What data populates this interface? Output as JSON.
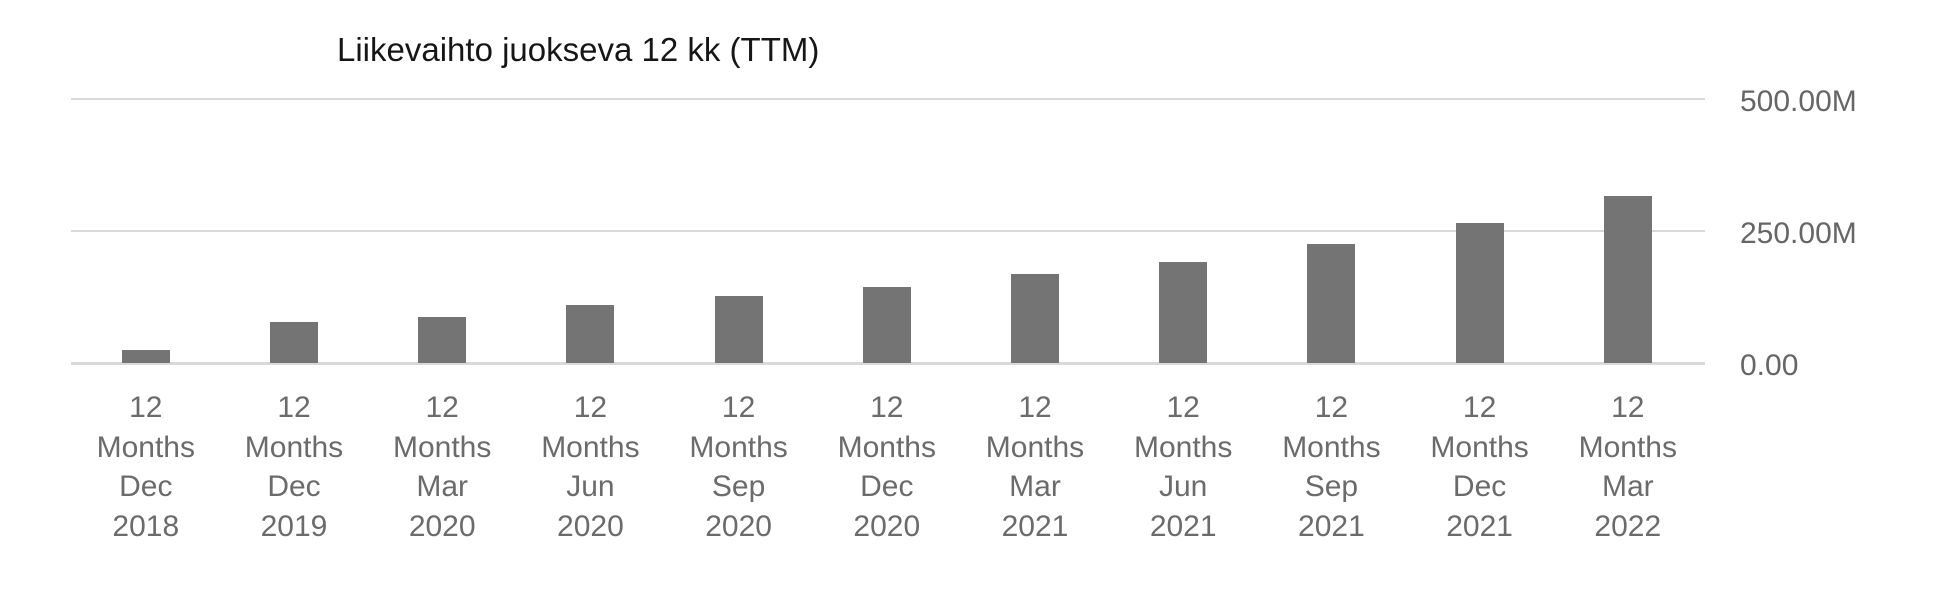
{
  "chart": {
    "title": "Liikevaihto juokseva 12 kk (TTM)"
  },
  "chart_data": {
    "type": "bar",
    "title": "Liikevaihto juokseva 12 kk (TTM)",
    "series_name": "Liikevaihto juokseva 12 kk (TTM)",
    "categories": [
      "12 Months Dec 2018",
      "12 Months Dec 2019",
      "12 Months Mar 2020",
      "12 Months Jun 2020",
      "12 Months Sep 2020",
      "12 Months Dec 2020",
      "12 Months Mar 2021",
      "12 Months Jun 2021",
      "12 Months Sep 2021",
      "12 Months Dec 2021",
      "12 Months Mar 2022"
    ],
    "values": [
      24,
      77,
      88,
      110,
      127,
      144,
      168,
      192,
      226,
      265,
      317
    ],
    "values_unit": "millions (M)",
    "xlabel": "",
    "ylabel": "",
    "ylim": [
      0,
      500
    ],
    "yticks": [
      {
        "value": 500,
        "label": "500.00M"
      },
      {
        "value": 250,
        "label": "250.00M"
      },
      {
        "value": 0,
        "label": "0.00"
      }
    ],
    "grid": "horizontal",
    "legend": "none",
    "y_axis_position": "right",
    "colors": {
      "bar": "#747474",
      "gridline": "#d9d9d9",
      "tick_label": "#666666",
      "category_label": "#6b6b6b",
      "title": "#161616",
      "background": "#ffffff"
    }
  }
}
